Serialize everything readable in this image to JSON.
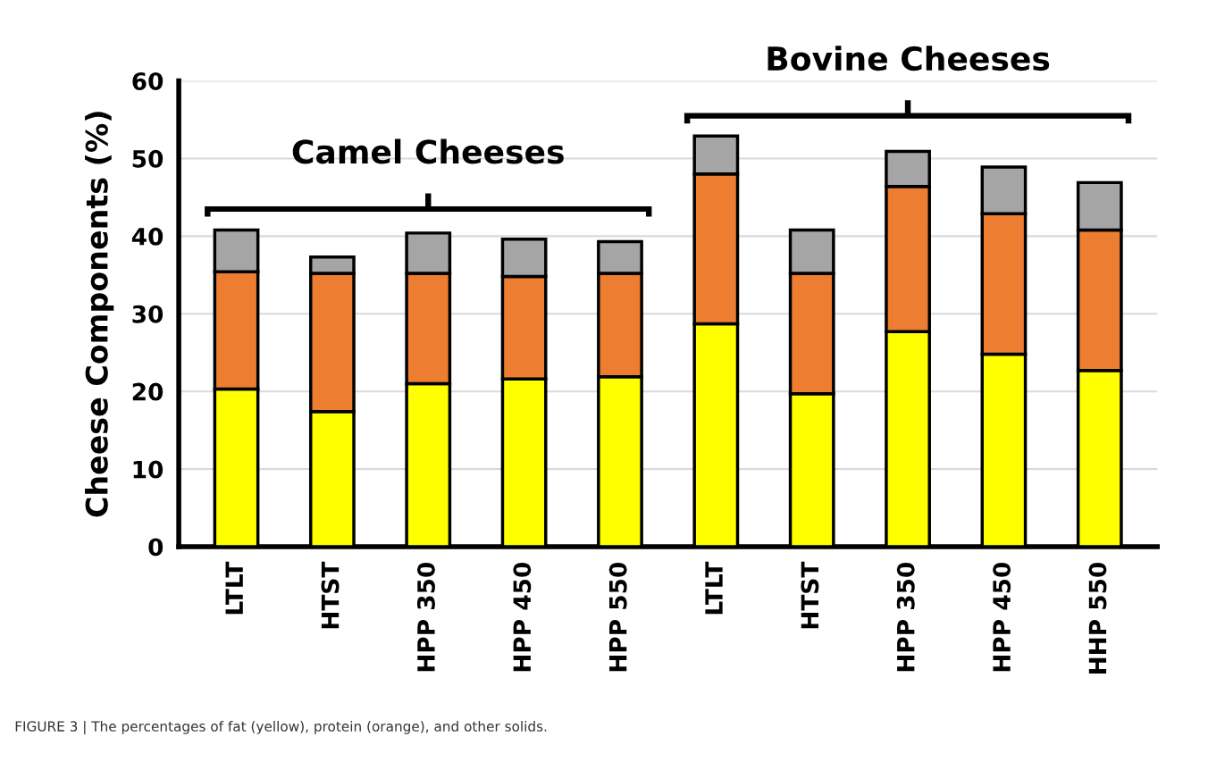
{
  "chart_data": {
    "type": "bar",
    "stacked": true,
    "ylabel": "Cheese Components (%)",
    "categories": [
      "LTLT",
      "HTST",
      "HPP 350",
      "HPP 450",
      "HPP 550",
      "LTLT",
      "HTST",
      "HPP 350",
      "HPP 450",
      "HHP 550"
    ],
    "series": [
      {
        "color": "#ffff00",
        "values": [
          20.3,
          17.4,
          21.0,
          21.6,
          21.9,
          28.7,
          19.7,
          27.7,
          24.8,
          22.7
        ]
      },
      {
        "color": "#ed7d31",
        "values": [
          15.1,
          17.8,
          14.2,
          13.2,
          13.3,
          19.3,
          15.5,
          18.7,
          18.1,
          18.1
        ]
      },
      {
        "color": "#a5a5a5",
        "values": [
          5.4,
          2.1,
          5.2,
          4.8,
          4.1,
          4.9,
          5.6,
          4.5,
          6.0,
          6.1
        ]
      }
    ],
    "ylim": [
      0,
      60
    ],
    "yticks": [
      0,
      10,
      20,
      30,
      40,
      50,
      60
    ],
    "grid": "y",
    "legend": false,
    "annotations": [
      "Camel Cheeses",
      "Bovine Cheeses",
      "FIGURE 3 | The percentages of fat (yellow), protein (orange), and other solids."
    ]
  }
}
